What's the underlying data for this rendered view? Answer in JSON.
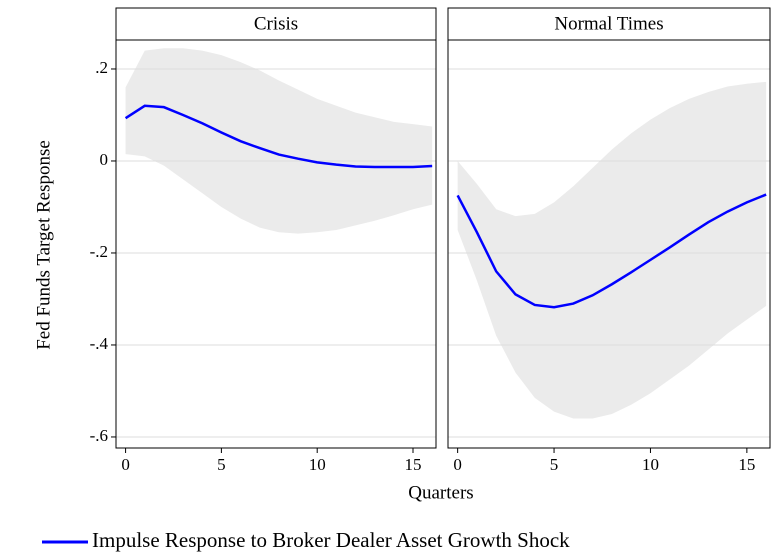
{
  "chart_data": {
    "type": "line",
    "ylabel": "Fed Funds Target Response",
    "xlabel": "Quarters",
    "series_name": "Impulse Response to Broker Dealer Asset Growth Shock",
    "color": "#0000ff",
    "band_color": "#ebebeb",
    "grid": true,
    "ylim": [
      -0.624,
      0.263
    ],
    "yticks": [
      {
        "value": 0.2,
        "label": ".2"
      },
      0,
      {
        "value": -0.2,
        "label": "-.2"
      },
      {
        "value": -0.4,
        "label": "-.4"
      },
      {
        "value": -0.6,
        "label": "-.6"
      }
    ],
    "xlim": [
      -0.5,
      16.2
    ],
    "xticks": [
      0,
      5,
      10,
      15
    ],
    "x": [
      0,
      1,
      2,
      3,
      4,
      5,
      6,
      7,
      8,
      9,
      10,
      11,
      12,
      13,
      14,
      15,
      16
    ],
    "panels": [
      {
        "title": "Crisis",
        "values": [
          0.093,
          0.12,
          0.117,
          0.1,
          0.082,
          0.062,
          0.043,
          0.028,
          0.014,
          0.005,
          -0.003,
          -0.008,
          -0.012,
          -0.013,
          -0.013,
          -0.013,
          -0.011
        ],
        "upper": [
          0.16,
          0.24,
          0.245,
          0.245,
          0.24,
          0.23,
          0.215,
          0.197,
          0.175,
          0.155,
          0.135,
          0.12,
          0.105,
          0.095,
          0.085,
          0.08,
          0.075
        ],
        "lower": [
          0.015,
          0.01,
          -0.01,
          -0.04,
          -0.07,
          -0.1,
          -0.125,
          -0.145,
          -0.155,
          -0.158,
          -0.155,
          -0.15,
          -0.14,
          -0.13,
          -0.118,
          -0.105,
          -0.095
        ]
      },
      {
        "title": "Normal Times",
        "values": [
          -0.075,
          -0.155,
          -0.24,
          -0.29,
          -0.313,
          -0.318,
          -0.31,
          -0.292,
          -0.268,
          -0.242,
          -0.215,
          -0.188,
          -0.16,
          -0.133,
          -0.11,
          -0.09,
          -0.073
        ],
        "upper": [
          0.0,
          -0.05,
          -0.105,
          -0.12,
          -0.115,
          -0.09,
          -0.055,
          -0.015,
          0.025,
          0.06,
          0.09,
          0.115,
          0.135,
          0.15,
          0.162,
          0.168,
          0.172
        ],
        "lower": [
          -0.15,
          -0.26,
          -0.38,
          -0.46,
          -0.515,
          -0.545,
          -0.56,
          -0.56,
          -0.55,
          -0.53,
          -0.505,
          -0.475,
          -0.445,
          -0.41,
          -0.375,
          -0.345,
          -0.315
        ]
      }
    ]
  }
}
